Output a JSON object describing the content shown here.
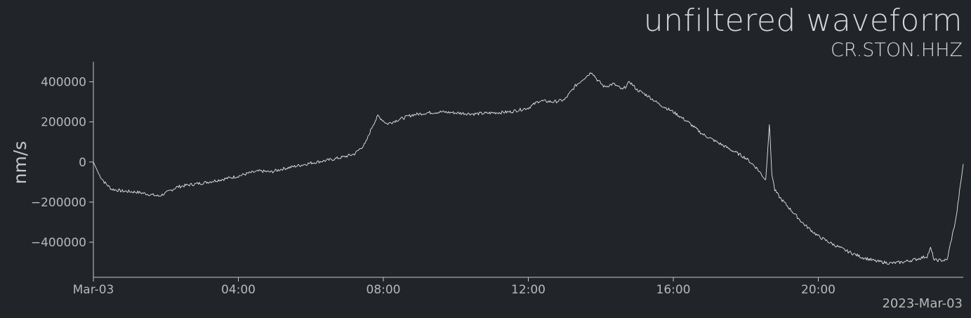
{
  "chart_data": {
    "type": "line",
    "title": "unfiltered waveform",
    "subtitle": "CR.STON.HHZ",
    "xlabel": "",
    "ylabel": "nm/s",
    "date_label": "2023-Mar-03",
    "x_unit": "hours since 2023-03-03 00:00",
    "xlim": [
      0,
      24
    ],
    "ylim": [
      -575000,
      500000
    ],
    "x_ticks": [
      {
        "value": 0,
        "label": "Mar-03"
      },
      {
        "value": 4,
        "label": "04:00"
      },
      {
        "value": 8,
        "label": "08:00"
      },
      {
        "value": 12,
        "label": "12:00"
      },
      {
        "value": 16,
        "label": "16:00"
      },
      {
        "value": 20,
        "label": "20:00"
      }
    ],
    "y_ticks": [
      {
        "value": 400000,
        "label": "400000"
      },
      {
        "value": 200000,
        "label": "200000"
      },
      {
        "value": 0,
        "label": "0"
      },
      {
        "value": -200000,
        "label": "−200000"
      },
      {
        "value": -400000,
        "label": "−400000"
      }
    ],
    "grid": false,
    "colors": {
      "background": "#212429",
      "line": "#e6e6e6",
      "axis": "#c8c8c8"
    },
    "series": [
      {
        "name": "CR.STON.HHZ",
        "x": [
          0,
          0.15,
          0.3,
          0.5,
          0.8,
          1.2,
          1.5,
          1.8,
          2.0,
          2.3,
          2.6,
          3.0,
          3.3,
          3.6,
          4.0,
          4.3,
          4.6,
          4.9,
          5.2,
          5.6,
          6.0,
          6.5,
          6.9,
          7.2,
          7.5,
          7.7,
          7.85,
          8.1,
          8.4,
          8.8,
          9.2,
          9.6,
          10.0,
          10.5,
          11.0,
          11.5,
          12.0,
          12.3,
          12.7,
          13.0,
          13.3,
          13.55,
          13.75,
          13.9,
          14.1,
          14.35,
          14.6,
          14.8,
          15.0,
          15.3,
          15.6,
          16.0,
          16.4,
          16.8,
          17.2,
          17.6,
          18.0,
          18.3,
          18.55,
          18.65,
          18.72,
          18.8,
          18.95,
          19.2,
          19.6,
          20.0,
          20.4,
          20.8,
          21.2,
          21.6,
          22.0,
          22.3,
          22.7,
          23.0,
          23.1,
          23.2,
          23.35,
          23.55,
          23.8,
          24.0
        ],
        "values": [
          0,
          -60000,
          -100000,
          -135000,
          -145000,
          -150000,
          -160000,
          -170000,
          -155000,
          -125000,
          -115000,
          -105000,
          -95000,
          -85000,
          -70000,
          -55000,
          -45000,
          -50000,
          -35000,
          -20000,
          -5000,
          10000,
          25000,
          40000,
          90000,
          180000,
          230000,
          190000,
          210000,
          235000,
          245000,
          250000,
          245000,
          240000,
          245000,
          250000,
          270000,
          305000,
          300000,
          310000,
          380000,
          420000,
          450000,
          410000,
          375000,
          390000,
          360000,
          400000,
          360000,
          330000,
          290000,
          250000,
          200000,
          140000,
          100000,
          60000,
          20000,
          -30000,
          -90000,
          190000,
          -60000,
          -140000,
          -180000,
          -230000,
          -310000,
          -370000,
          -410000,
          -445000,
          -475000,
          -495000,
          -505000,
          -500000,
          -485000,
          -470000,
          -430000,
          -490000,
          -490000,
          -490000,
          -280000,
          -10000
        ]
      }
    ]
  }
}
